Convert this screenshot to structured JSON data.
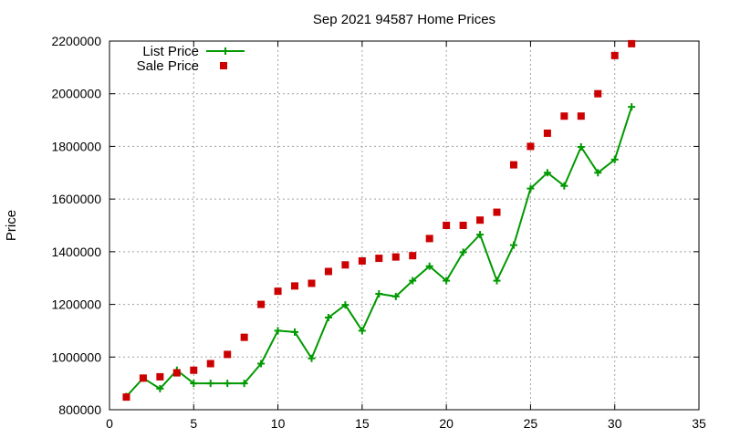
{
  "chart_data": {
    "type": "line",
    "title": "Sep 2021 94587 Home Prices",
    "xlabel": "",
    "ylabel": "Price",
    "xlim": [
      0,
      35
    ],
    "ylim": [
      800000,
      2200000
    ],
    "x_ticks": [
      0,
      5,
      10,
      15,
      20,
      25,
      30,
      35
    ],
    "y_ticks": [
      800000,
      1000000,
      1200000,
      1400000,
      1600000,
      1800000,
      2000000,
      2200000
    ],
    "grid": true,
    "legend_position": "top-left",
    "series": [
      {
        "name": "List Price",
        "style": "line-plus",
        "color": "#009900",
        "x": [
          1,
          2,
          3,
          4,
          5,
          6,
          7,
          8,
          9,
          10,
          11,
          12,
          13,
          14,
          15,
          16,
          17,
          18,
          19,
          20,
          21,
          22,
          23,
          24,
          25,
          26,
          27,
          28,
          29,
          30,
          31
        ],
        "y": [
          850000,
          920000,
          880000,
          950000,
          900000,
          900000,
          900000,
          900000,
          975000,
          1100000,
          1095000,
          995000,
          1150000,
          1198000,
          1100000,
          1240000,
          1230000,
          1290000,
          1345000,
          1290000,
          1398000,
          1465000,
          1290000,
          1425000,
          1640000,
          1700000,
          1650000,
          1798000,
          1700000,
          1750000,
          1950000
        ]
      },
      {
        "name": "Sale Price",
        "style": "square-marker",
        "color": "#cc0000",
        "x": [
          1,
          2,
          3,
          4,
          5,
          6,
          7,
          8,
          9,
          10,
          11,
          12,
          13,
          14,
          15,
          16,
          17,
          18,
          19,
          20,
          21,
          22,
          23,
          24,
          25,
          26,
          27,
          28,
          29,
          30,
          31
        ],
        "y": [
          848000,
          920000,
          925000,
          940000,
          950000,
          975000,
          1010000,
          1075000,
          1200000,
          1250000,
          1270000,
          1280000,
          1325000,
          1350000,
          1365000,
          1375000,
          1380000,
          1385000,
          1450000,
          1500000,
          1500000,
          1520000,
          1550000,
          1730000,
          1800000,
          1850000,
          1915000,
          1915000,
          2000000,
          2145000,
          2190000
        ]
      }
    ]
  }
}
